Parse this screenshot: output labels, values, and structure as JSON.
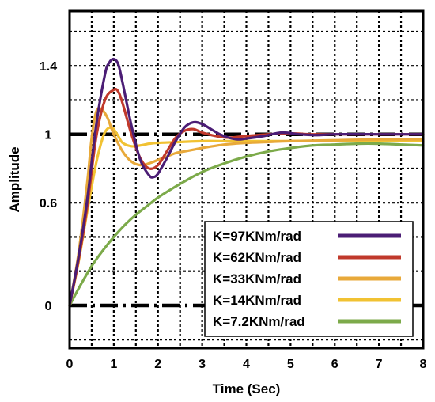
{
  "chart_data": {
    "type": "line",
    "title": "",
    "xlabel": "Time (Sec)",
    "ylabel": "Amplitude",
    "xlim": [
      0,
      8
    ],
    "ylim": [
      -0.25,
      1.72
    ],
    "xticks": [
      0,
      1,
      2,
      3,
      4,
      5,
      6,
      7,
      8
    ],
    "yticks": [
      {
        "value": 0,
        "label": "0"
      },
      {
        "value": 0.6,
        "label": "0.6"
      },
      {
        "value": 1,
        "label": "1"
      },
      {
        "value": 1.4,
        "label": "1.4"
      }
    ],
    "grid": true,
    "reference_lines": [
      0,
      1
    ],
    "legend_position": "bottom-right",
    "series": [
      {
        "name": "K=97KNm/rad",
        "color": "#4b1d75",
        "x": [
          0,
          0.2,
          0.4,
          0.6,
          0.8,
          0.9,
          1.0,
          1.1,
          1.2,
          1.4,
          1.6,
          1.8,
          1.9,
          2.0,
          2.2,
          2.4,
          2.6,
          2.8,
          3.0,
          3.2,
          3.4,
          3.6,
          3.8,
          4.0,
          4.4,
          4.8,
          5.2,
          5.6,
          6.0,
          7.0,
          8.0
        ],
        "y": [
          0,
          0.28,
          0.62,
          1.05,
          1.35,
          1.42,
          1.44,
          1.41,
          1.3,
          1.05,
          0.85,
          0.76,
          0.75,
          0.77,
          0.86,
          0.96,
          1.04,
          1.07,
          1.06,
          1.03,
          1.0,
          0.98,
          0.97,
          0.975,
          0.99,
          1.01,
          1.0,
          0.995,
          1.0,
          1.0,
          1.0
        ]
      },
      {
        "name": "K=62KNm/rad",
        "color": "#c0392b",
        "x": [
          0,
          0.2,
          0.4,
          0.6,
          0.8,
          1.0,
          1.1,
          1.2,
          1.4,
          1.6,
          1.8,
          2.0,
          2.2,
          2.4,
          2.6,
          2.8,
          3.0,
          3.3,
          3.6,
          4.0,
          4.5,
          5.0,
          5.5,
          6.0,
          7.0,
          8.0
        ],
        "y": [
          0,
          0.26,
          0.58,
          0.98,
          1.2,
          1.26,
          1.25,
          1.18,
          1.0,
          0.86,
          0.8,
          0.82,
          0.9,
          0.98,
          1.02,
          1.03,
          1.01,
          0.99,
          0.98,
          0.99,
          1.0,
          1.005,
          1.0,
          1.0,
          1.0,
          1.0
        ]
      },
      {
        "name": "K=33KNm/rad",
        "color": "#e8a93a",
        "x": [
          0,
          0.2,
          0.4,
          0.5,
          0.6,
          0.7,
          0.85,
          1.0,
          1.2,
          1.4,
          1.6,
          1.8,
          2.0,
          2.2,
          2.4,
          2.6,
          2.8,
          3.0,
          3.5,
          4.0,
          4.5,
          5.0,
          6.0,
          7.0,
          8.0
        ],
        "y": [
          0,
          0.3,
          0.72,
          0.98,
          1.13,
          1.15,
          1.1,
          1.0,
          0.9,
          0.84,
          0.82,
          0.83,
          0.85,
          0.87,
          0.89,
          0.9,
          0.91,
          0.92,
          0.94,
          0.95,
          0.955,
          0.96,
          0.965,
          0.97,
          0.97
        ]
      },
      {
        "name": "K=14KNm/rad",
        "color": "#f1c232",
        "x": [
          0,
          0.2,
          0.4,
          0.6,
          0.75,
          0.85,
          0.95,
          1.0,
          1.1,
          1.2,
          1.4,
          1.6,
          1.8,
          2.0,
          2.5,
          3.0,
          3.5,
          4.0,
          5.0,
          6.0,
          7.0,
          8.0
        ],
        "y": [
          0,
          0.25,
          0.55,
          0.83,
          0.98,
          1.03,
          1.04,
          1.03,
          0.99,
          0.95,
          0.93,
          0.935,
          0.945,
          0.95,
          0.955,
          0.96,
          0.96,
          0.96,
          0.96,
          0.96,
          0.96,
          0.96
        ]
      },
      {
        "name": "K=7.2KNm/rad",
        "color": "#7caa4a",
        "x": [
          0,
          0.25,
          0.5,
          0.75,
          1.0,
          1.25,
          1.5,
          1.75,
          2.0,
          2.5,
          3.0,
          3.5,
          4.0,
          4.5,
          5.0,
          5.5,
          6.0,
          6.5,
          7.0,
          7.5,
          8.0
        ],
        "y": [
          0,
          0.12,
          0.23,
          0.32,
          0.4,
          0.47,
          0.53,
          0.58,
          0.63,
          0.71,
          0.78,
          0.83,
          0.87,
          0.9,
          0.92,
          0.935,
          0.94,
          0.945,
          0.945,
          0.94,
          0.935
        ]
      }
    ]
  }
}
